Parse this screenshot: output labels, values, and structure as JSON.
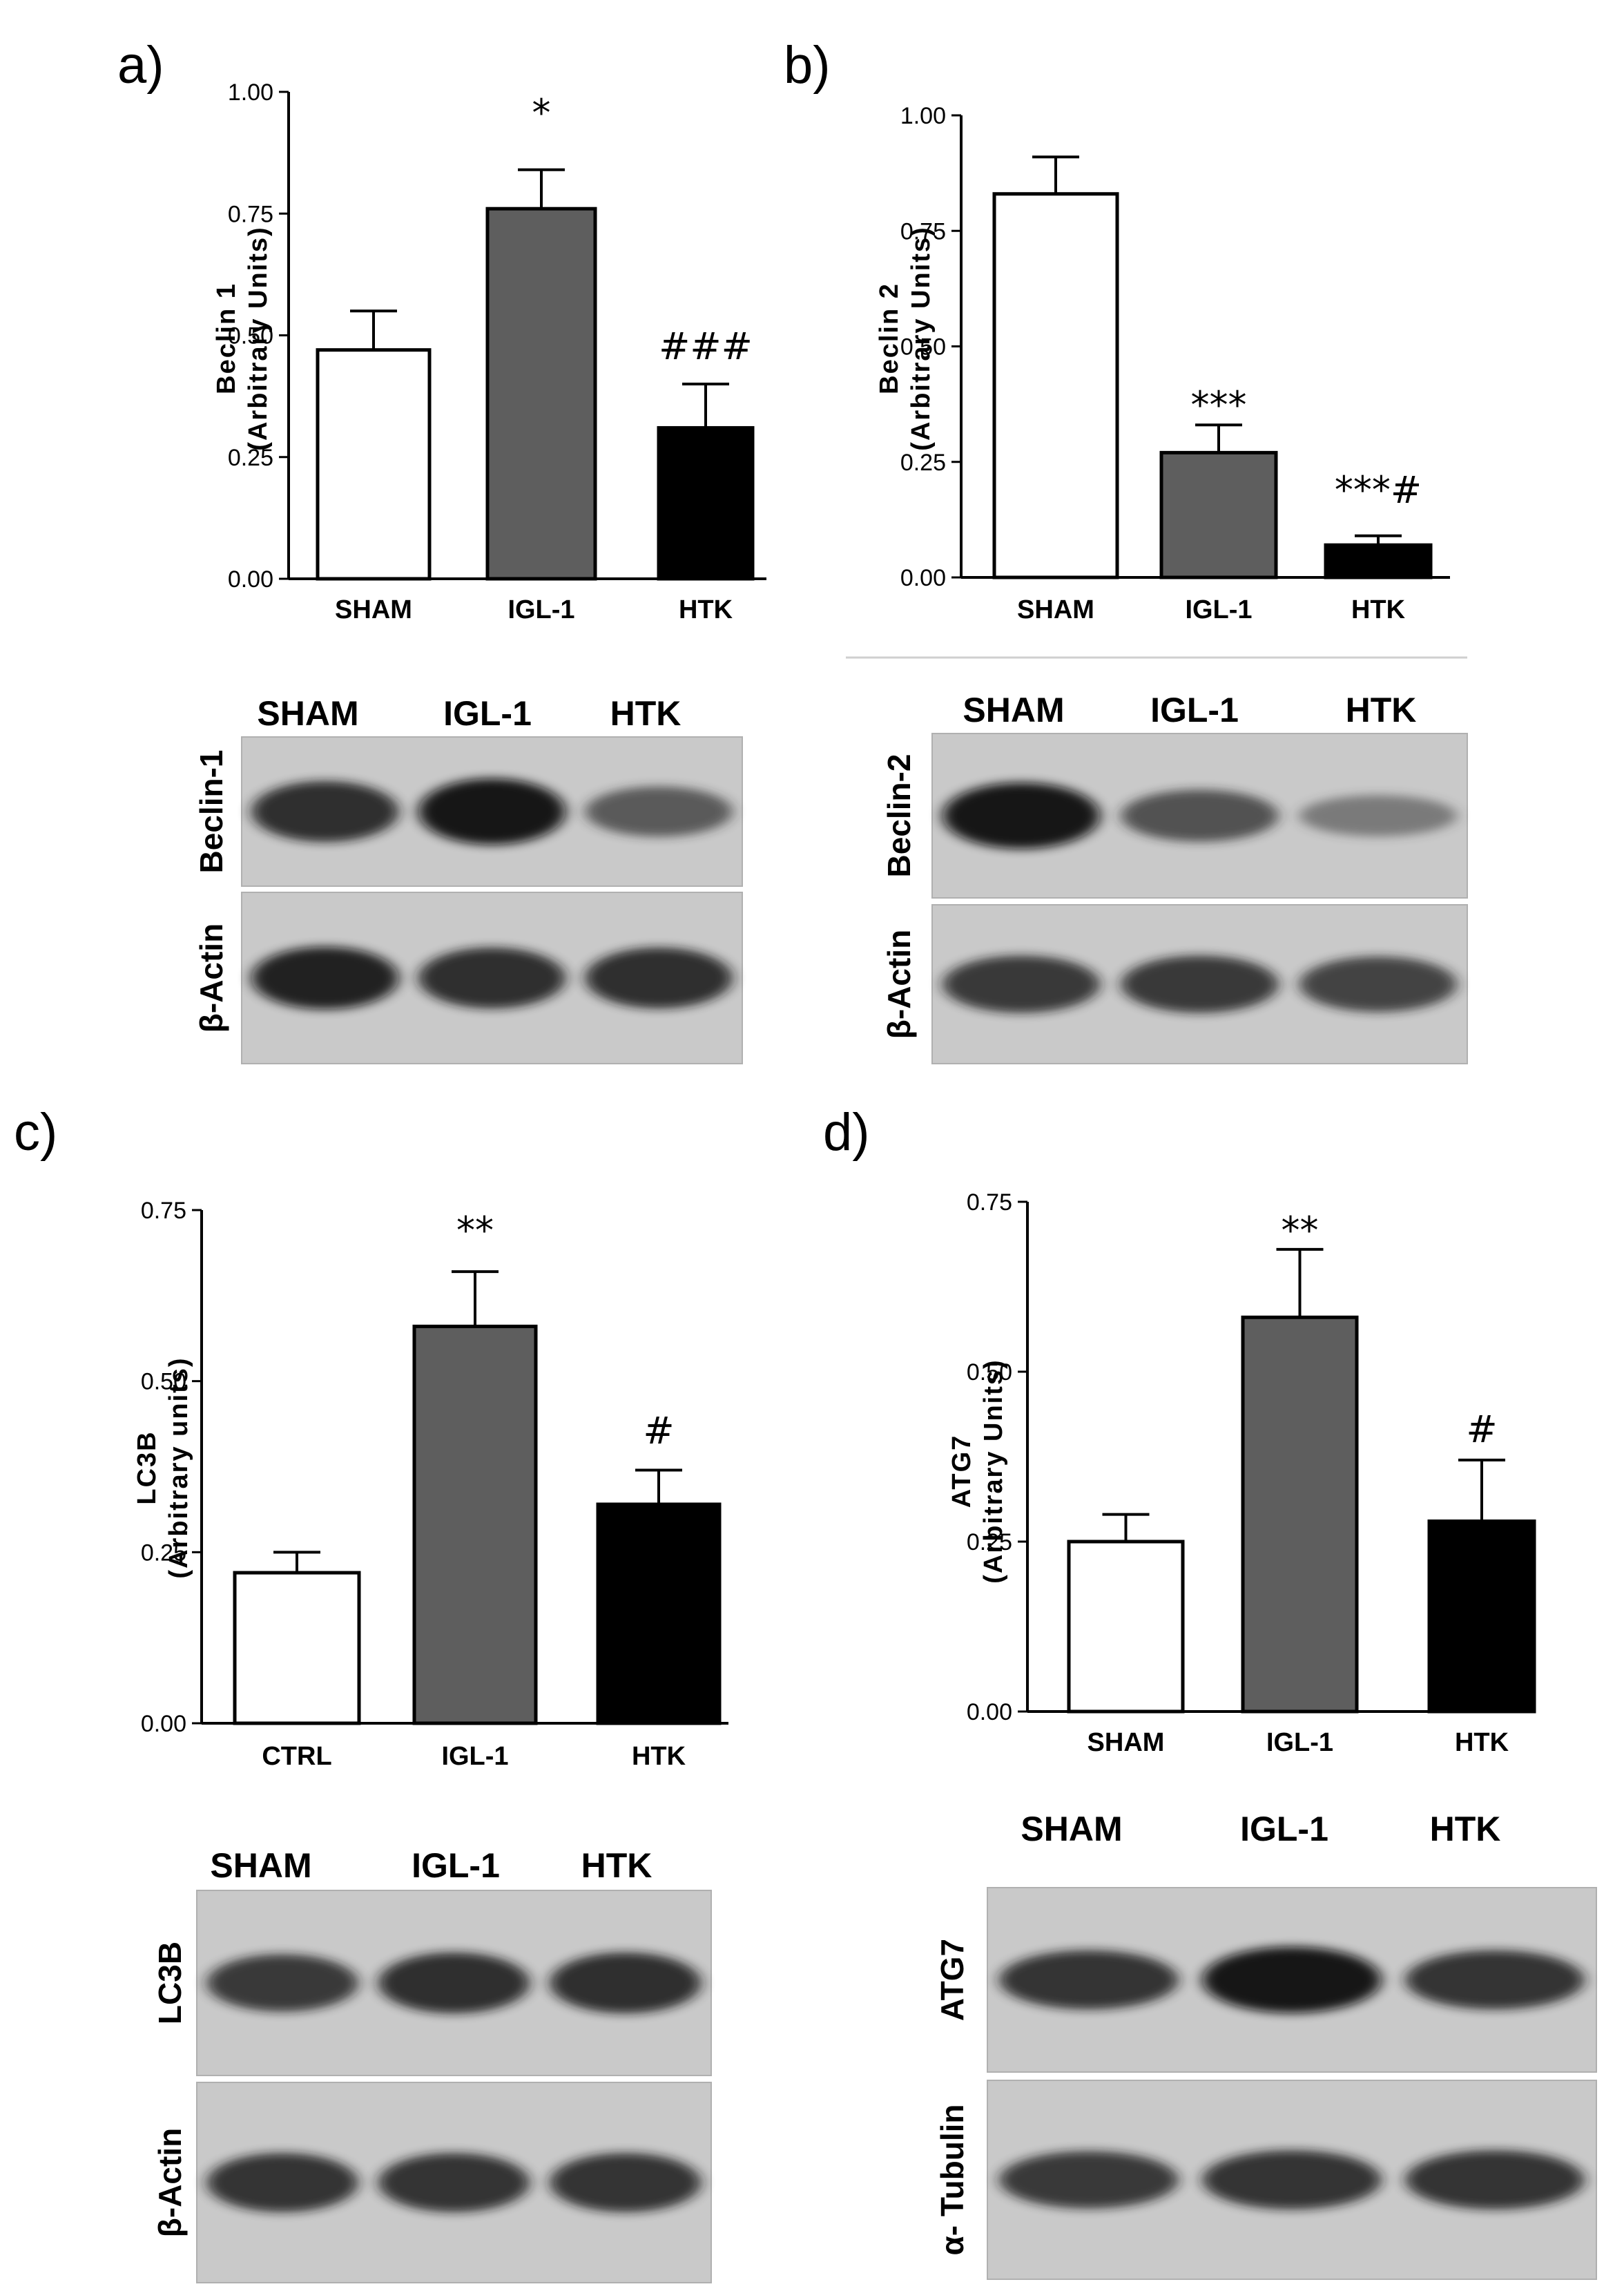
{
  "panels": [
    {
      "letter": "a)",
      "blot": {
        "lanes": [
          "SHAM",
          "IGL-1",
          "HTK"
        ],
        "rows": [
          {
            "label": "Beclin-1",
            "intensity": [
              0.85,
              1.0,
              0.55
            ]
          },
          {
            "label": "β-Actin",
            "intensity": [
              0.9,
              0.85,
              0.85
            ]
          }
        ]
      }
    },
    {
      "letter": "b)",
      "blot": {
        "lanes": [
          "SHAM",
          "IGL-1",
          "HTK"
        ],
        "rows": [
          {
            "label": "Beclin-2",
            "intensity": [
              1.0,
              0.6,
              0.3
            ]
          },
          {
            "label": "β-Actin",
            "intensity": [
              0.75,
              0.75,
              0.7
            ]
          }
        ]
      }
    },
    {
      "letter": "c)",
      "blot": {
        "lanes": [
          "SHAM",
          "IGL-1",
          "HTK"
        ],
        "rows": [
          {
            "label": "LC3B",
            "intensity": [
              0.75,
              0.85,
              0.85
            ]
          },
          {
            "label": "β-Actin",
            "intensity": [
              0.8,
              0.8,
              0.8
            ]
          }
        ]
      }
    },
    {
      "letter": "d)",
      "blot": {
        "lanes": [
          "SHAM",
          "IGL-1",
          "HTK"
        ],
        "rows": [
          {
            "label": "ATG7",
            "intensity": [
              0.8,
              1.0,
              0.8
            ]
          },
          {
            "label": "α- Tubulin",
            "intensity": [
              0.75,
              0.8,
              0.8
            ]
          }
        ]
      }
    }
  ],
  "chart_data": [
    {
      "type": "bar",
      "categories": [
        "SHAM",
        "IGL-1",
        "HTK"
      ],
      "values": [
        0.47,
        0.76,
        0.31
      ],
      "errors": [
        0.08,
        0.08,
        0.09
      ],
      "significance": [
        "",
        "*",
        "###"
      ],
      "ylabel": [
        "Beclin 1",
        "(Arbitrary Units)"
      ],
      "ylim": [
        0,
        1.0
      ],
      "yticks": [
        "0.00",
        "0.25",
        "0.50",
        "0.75",
        "1.00"
      ],
      "colors": [
        "#ffffff",
        "#5e5e5e",
        "#000000"
      ]
    },
    {
      "type": "bar",
      "categories": [
        "SHAM",
        "IGL-1",
        "HTK"
      ],
      "values": [
        0.83,
        0.27,
        0.07
      ],
      "errors": [
        0.08,
        0.06,
        0.02
      ],
      "significance": [
        "",
        "***",
        "***#"
      ],
      "ylabel": [
        "Beclin 2",
        "(Arbitrary Units)"
      ],
      "ylim": [
        0,
        1.0
      ],
      "yticks": [
        "0.00",
        "0.25",
        "0.50",
        "0.75",
        "1.00"
      ],
      "colors": [
        "#ffffff",
        "#5e5e5e",
        "#000000"
      ]
    },
    {
      "type": "bar",
      "categories": [
        "CTRL",
        "IGL-1",
        "HTK"
      ],
      "values": [
        0.22,
        0.58,
        0.32
      ],
      "errors": [
        0.03,
        0.08,
        0.05
      ],
      "significance": [
        "",
        "**",
        "#"
      ],
      "ylabel": [
        "LC3B",
        "(Arbitrary units)"
      ],
      "ylim": [
        0,
        0.75
      ],
      "yticks": [
        "0.00",
        "0.25",
        "0.50",
        "0.75"
      ],
      "colors": [
        "#ffffff",
        "#5e5e5e",
        "#000000"
      ]
    },
    {
      "type": "bar",
      "categories": [
        "SHAM",
        "IGL-1",
        "HTK"
      ],
      "values": [
        0.25,
        0.58,
        0.28
      ],
      "errors": [
        0.04,
        0.1,
        0.09
      ],
      "significance": [
        "",
        "**",
        "#"
      ],
      "ylabel": [
        "ATG7",
        "(Arbitrary Units)"
      ],
      "ylim": [
        0,
        0.75
      ],
      "yticks": [
        "0.00",
        "0.25",
        "0.50",
        "0.75"
      ],
      "colors": [
        "#ffffff",
        "#5e5e5e",
        "#000000"
      ]
    }
  ]
}
